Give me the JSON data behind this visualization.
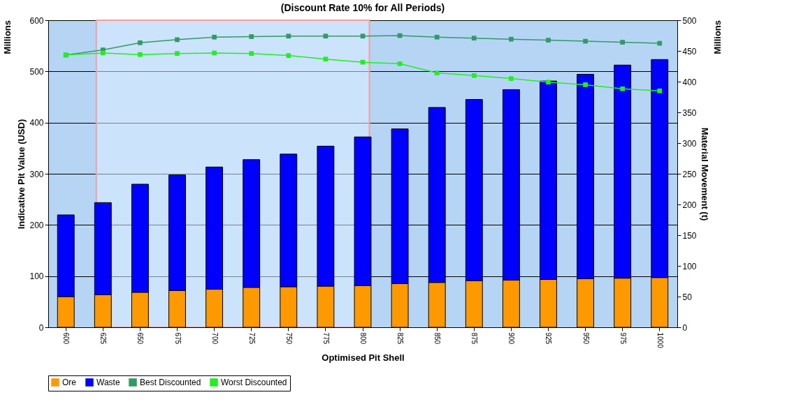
{
  "chart_data": {
    "type": "bar",
    "title": "(Discount Rate 10% for All Periods)",
    "xlabel": "Optimised Pit Shell",
    "ylabel": "Indicative Pit Value (USD)",
    "y2label": "Material Movement (t)",
    "annotations": [
      "Millions",
      "Millions"
    ],
    "categories": [
      "600",
      "625",
      "650",
      "675",
      "700",
      "725",
      "750",
      "775",
      "800",
      "825",
      "850",
      "875",
      "900",
      "925",
      "950",
      "975",
      "1000"
    ],
    "stacked": true,
    "series": [
      {
        "name": "Ore",
        "axis": "y2",
        "color": "#ff9900",
        "values": [
          50,
          53,
          57,
          60,
          62,
          65,
          66,
          67,
          68,
          71,
          73,
          76,
          77,
          78,
          79,
          80,
          81
        ]
      },
      {
        "name": "Waste",
        "axis": "y2",
        "color": "#0000ff",
        "values": [
          133,
          150,
          176,
          188,
          199,
          208,
          216,
          228,
          242,
          252,
          285,
          295,
          310,
          323,
          333,
          347,
          355
        ]
      },
      {
        "name": "Best Discounted",
        "type": "line",
        "color": "#339966",
        "values": [
          532,
          542,
          556,
          562,
          567,
          568,
          569,
          569,
          569,
          570,
          567,
          565,
          563,
          561,
          559,
          557,
          555
        ]
      },
      {
        "name": "Worst Discounted",
        "type": "line",
        "color": "#22ee22",
        "values": [
          532,
          536,
          533,
          535,
          536,
          535,
          531,
          524,
          518,
          515,
          497,
          492,
          486,
          479,
          474,
          466,
          462
        ]
      }
    ],
    "ylim": [
      0,
      600
    ],
    "yticks": [
      0,
      100,
      200,
      300,
      400,
      500,
      600
    ],
    "y2lim": [
      0,
      500
    ],
    "y2ticks": [
      0,
      50,
      100,
      150,
      200,
      250,
      300,
      350,
      400,
      450,
      500
    ],
    "bands": [
      {
        "axis": "x",
        "from": "625",
        "to": "800",
        "color": "#f0a0a0"
      }
    ],
    "grid": "y",
    "legend": "bottom",
    "marker": "square",
    "line_style": "solid"
  }
}
